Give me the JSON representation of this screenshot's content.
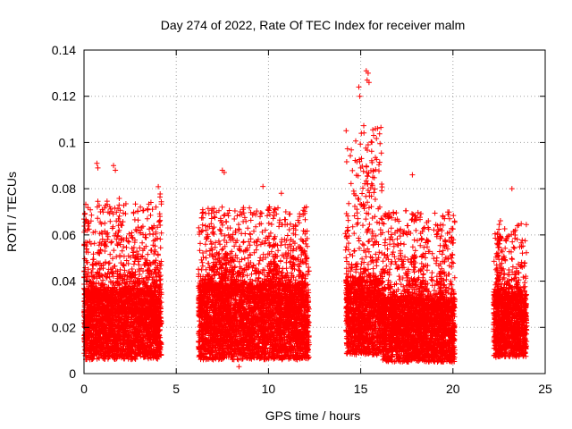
{
  "chart_data": {
    "type": "scatter",
    "title": "Day 274 of 2022, Rate Of TEC Index for receiver malm",
    "xlabel": "GPS time / hours",
    "ylabel": "ROTI / TECUs",
    "xlim": [
      0,
      25
    ],
    "ylim": [
      0,
      0.14
    ],
    "x_ticks": [
      0,
      5,
      10,
      15,
      20,
      25
    ],
    "x_tick_labels": [
      "0",
      "5",
      "10",
      "15",
      "20",
      "25"
    ],
    "y_ticks": [
      0,
      0.02,
      0.04,
      0.06,
      0.08,
      0.1,
      0.12,
      0.14
    ],
    "y_tick_labels": [
      "0",
      "0.02",
      "0.04",
      "0.06",
      "0.08",
      "0.1",
      "0.12",
      "0.14"
    ],
    "grid": true,
    "marker": "+",
    "color": "#ff0000",
    "series": [
      {
        "name": "ROTI",
        "segments": [
          {
            "x_start": 0.0,
            "x_end": 4.2,
            "base_min": 0.006,
            "base_max": 0.036,
            "peak": 0.091
          },
          {
            "x_start": 6.2,
            "x_end": 12.2,
            "base_min": 0.006,
            "base_max": 0.038,
            "peak": 0.088
          },
          {
            "x_start": 14.2,
            "x_end": 16.2,
            "base_min": 0.008,
            "base_max": 0.04,
            "peak": 0.131
          },
          {
            "x_start": 16.2,
            "x_end": 20.1,
            "base_min": 0.005,
            "base_max": 0.032,
            "peak": 0.086
          },
          {
            "x_start": 22.2,
            "x_end": 24.0,
            "base_min": 0.007,
            "base_max": 0.034,
            "peak": 0.08
          }
        ],
        "notable_points": [
          {
            "x": 15.3,
            "y": 0.131
          },
          {
            "x": 15.4,
            "y": 0.13
          },
          {
            "x": 15.35,
            "y": 0.127
          },
          {
            "x": 15.45,
            "y": 0.126
          },
          {
            "x": 14.9,
            "y": 0.124
          },
          {
            "x": 14.95,
            "y": 0.12
          },
          {
            "x": 0.7,
            "y": 0.091
          },
          {
            "x": 0.75,
            "y": 0.089
          },
          {
            "x": 1.6,
            "y": 0.09
          },
          {
            "x": 1.7,
            "y": 0.088
          },
          {
            "x": 7.5,
            "y": 0.088
          },
          {
            "x": 7.6,
            "y": 0.087
          },
          {
            "x": 15.0,
            "y": 0.089
          },
          {
            "x": 17.8,
            "y": 0.086
          },
          {
            "x": 9.7,
            "y": 0.081
          },
          {
            "x": 23.2,
            "y": 0.08
          },
          {
            "x": 10.7,
            "y": 0.078
          },
          {
            "x": 19.9,
            "y": 0.057
          },
          {
            "x": 8.4,
            "y": 0.003
          }
        ]
      }
    ]
  }
}
